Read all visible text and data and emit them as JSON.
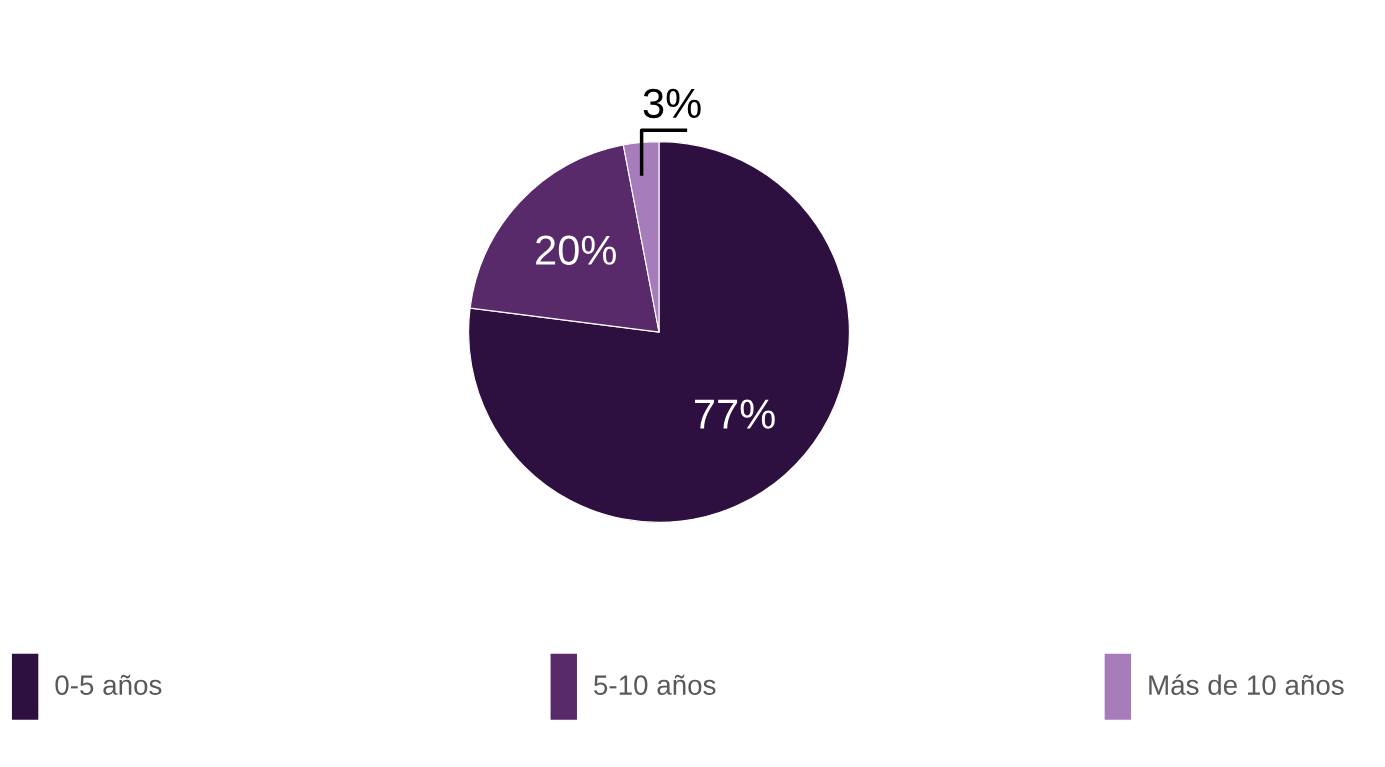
{
  "chart_data": {
    "type": "pie",
    "categories": [
      "0-5 años",
      "5-10 años",
      "Más de 10 años"
    ],
    "values": [
      77,
      20,
      3
    ],
    "colors": [
      "#2d0f40",
      "#582a69",
      "#a67dba"
    ],
    "value_labels": [
      "77%",
      "20%",
      "3%"
    ],
    "legend": "bottom"
  }
}
